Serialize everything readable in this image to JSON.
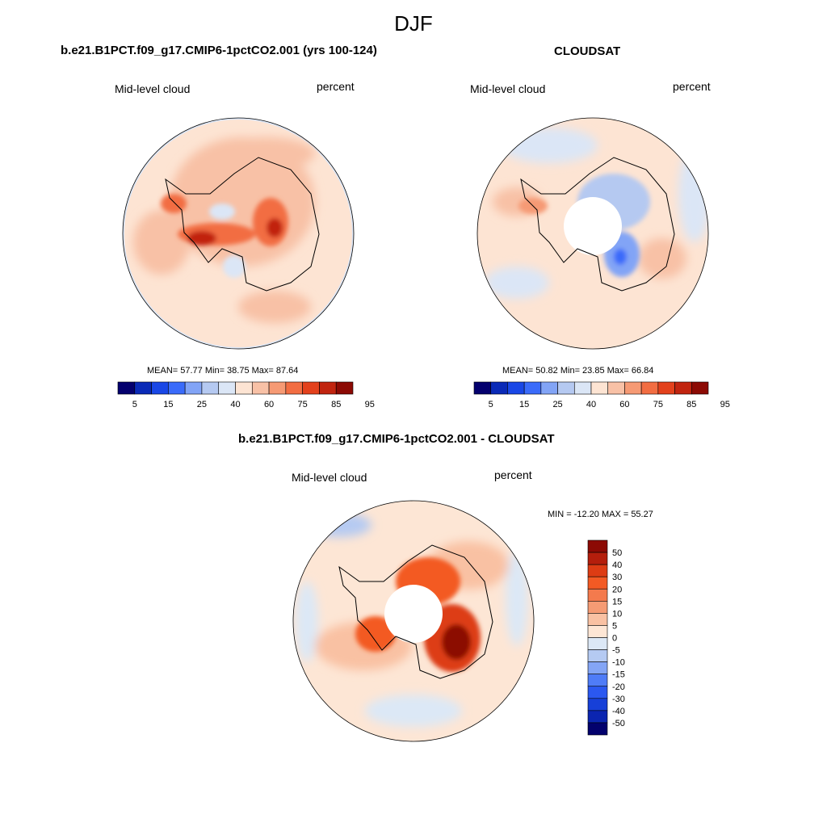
{
  "figure": {
    "title": "DJF"
  },
  "colors": {
    "seq": [
      "#04006e",
      "#0a2ab7",
      "#1947e6",
      "#3a6bfa",
      "#82a4f6",
      "#b5c9f1",
      "#dbe6f6",
      "#fde4d3",
      "#f8c1a6",
      "#f69a74",
      "#f26d42",
      "#e3411c",
      "#c1240f",
      "#8c0a04"
    ],
    "div": [
      "#8c0a04",
      "#b41e0c",
      "#dd3c14",
      "#f35a24",
      "#f47a4d",
      "#f59b74",
      "#f9c1a3",
      "#fde6d5",
      "#dce8f6",
      "#b5caf2",
      "#84a5f5",
      "#4f7cf7",
      "#2b58f0",
      "#1740d8",
      "#0b25b0",
      "#03016d"
    ],
    "coast": "#000000",
    "outline": "#000000"
  },
  "chart_data": [
    {
      "type": "heatmap",
      "projection": "south-polar stereographic",
      "title": "b.e21.B1PCT.f09_g17.CMIP6-1pctCO2.001 (yrs 100-124)",
      "left_label": "Mid-level cloud",
      "right_label": "percent",
      "stats": "MEAN=  57.77  Min=  38.75  Max=  87.64",
      "mean": 57.77,
      "min": 38.75,
      "max": 87.64,
      "colorbar": {
        "orientation": "horizontal",
        "levels": [
          5,
          10,
          15,
          20,
          25,
          30,
          40,
          50,
          60,
          70,
          75,
          80,
          85,
          90,
          95
        ],
        "tick_labels": [
          "5",
          "15",
          "25",
          "40",
          "60",
          "75",
          "85",
          "95"
        ]
      }
    },
    {
      "type": "heatmap",
      "projection": "south-polar stereographic",
      "title": "CLOUDSAT",
      "left_label": "Mid-level cloud",
      "right_label": "percent",
      "stats": "MEAN=  50.82  Min=  23.85  Max=  66.84",
      "mean": 50.82,
      "min": 23.85,
      "max": 66.84,
      "pole_hole": true,
      "colorbar": {
        "orientation": "horizontal",
        "levels": [
          5,
          10,
          15,
          20,
          25,
          30,
          40,
          50,
          60,
          70,
          75,
          80,
          85,
          90,
          95
        ],
        "tick_labels": [
          "5",
          "15",
          "25",
          "40",
          "60",
          "75",
          "85",
          "95"
        ]
      }
    },
    {
      "type": "heatmap",
      "projection": "south-polar stereographic",
      "title": "b.e21.B1PCT.f09_g17.CMIP6-1pctCO2.001 - CLOUDSAT",
      "left_label": "Mid-level cloud",
      "right_label": "percent",
      "stats": "MIN = -12.20 MAX =  55.27",
      "min": -12.2,
      "max": 55.27,
      "pole_hole": true,
      "colorbar": {
        "orientation": "vertical",
        "tick_labels": [
          "50",
          "40",
          "30",
          "20",
          "15",
          "10",
          "5",
          "0",
          "-5",
          "-10",
          "-15",
          "-20",
          "-30",
          "-40",
          "-50"
        ]
      }
    }
  ]
}
